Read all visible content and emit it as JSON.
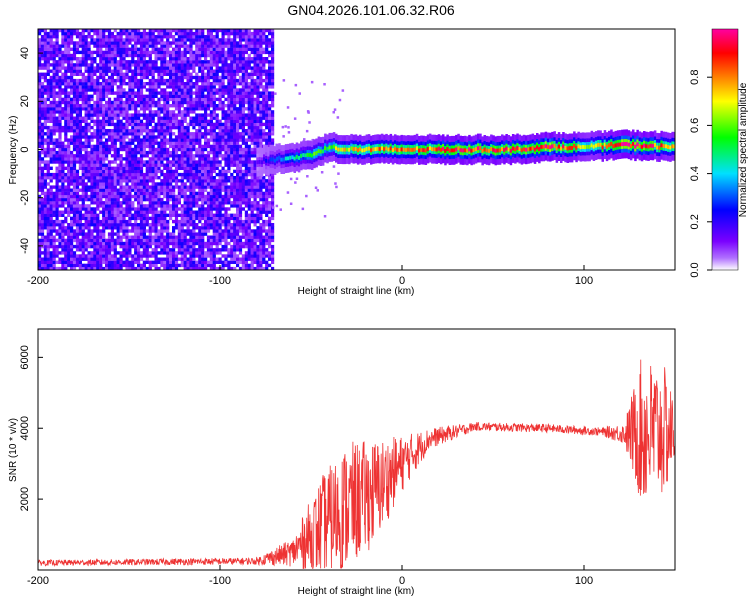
{
  "title": "GN04.2026.101.06.32.R06",
  "chart_data": [
    {
      "type": "heatmap",
      "name": "spectrogram",
      "xlabel": "Height of straight line (km)",
      "ylabel": "Frequency (Hz)",
      "xlim": [
        -200,
        150
      ],
      "ylim": [
        -50,
        50
      ],
      "xticks": [
        -200,
        -100,
        0,
        100
      ],
      "yticks": [
        -40,
        -20,
        0,
        20,
        40
      ],
      "colorbar": {
        "label": "Normalized spectral amplitude",
        "range": [
          0.0,
          1.0
        ],
        "ticks": [
          "0.0",
          "0.2",
          "0.4",
          "0.6",
          "0.8"
        ],
        "colormap": [
          "#ffffff",
          "#7a00ff",
          "#0000ff",
          "#00ffff",
          "#00ff00",
          "#ffff00",
          "#ff8000",
          "#ff0000",
          "#ff00ff"
        ]
      },
      "noise_region_x": [
        -200,
        -72
      ],
      "ridge": [
        {
          "x": -80,
          "f": -5,
          "a": 0.15
        },
        {
          "x": -70,
          "f": -4,
          "a": 0.3
        },
        {
          "x": -60,
          "f": -3.5,
          "a": 0.45
        },
        {
          "x": -50,
          "f": -2,
          "a": 0.55
        },
        {
          "x": -40,
          "f": 1,
          "a": 0.6
        },
        {
          "x": -30,
          "f": 0,
          "a": 0.7
        },
        {
          "x": -20,
          "f": 0,
          "a": 0.75
        },
        {
          "x": 0,
          "f": 0,
          "a": 0.8
        },
        {
          "x": 20,
          "f": 0,
          "a": 0.85
        },
        {
          "x": 40,
          "f": 0,
          "a": 0.9
        },
        {
          "x": 60,
          "f": 0,
          "a": 0.85
        },
        {
          "x": 80,
          "f": 1,
          "a": 0.95
        },
        {
          "x": 100,
          "f": 1,
          "a": 0.7
        },
        {
          "x": 120,
          "f": 2,
          "a": 0.95
        },
        {
          "x": 150,
          "f": 1,
          "a": 0.8
        }
      ]
    },
    {
      "type": "line",
      "name": "snr",
      "xlabel": "Height of straight line (km)",
      "ylabel": "SNR (10 * v/v)",
      "xlim": [
        -200,
        150
      ],
      "ylim": [
        0,
        6800
      ],
      "xticks": [
        -200,
        -100,
        0,
        100
      ],
      "yticks": [
        2000,
        4000,
        6000
      ],
      "color": "#ee3333",
      "envelope": [
        {
          "x": -200,
          "mean": 200,
          "amp": 80
        },
        {
          "x": -80,
          "mean": 250,
          "amp": 100
        },
        {
          "x": -60,
          "mean": 500,
          "amp": 400
        },
        {
          "x": -45,
          "mean": 1200,
          "amp": 1400
        },
        {
          "x": -30,
          "mean": 1800,
          "amp": 1800
        },
        {
          "x": -15,
          "mean": 2200,
          "amp": 1500
        },
        {
          "x": 0,
          "mean": 3000,
          "amp": 800
        },
        {
          "x": 15,
          "mean": 3700,
          "amp": 300
        },
        {
          "x": 40,
          "mean": 4050,
          "amp": 120
        },
        {
          "x": 80,
          "mean": 4000,
          "amp": 120
        },
        {
          "x": 110,
          "mean": 3900,
          "amp": 120
        },
        {
          "x": 122,
          "mean": 3850,
          "amp": 300
        },
        {
          "x": 132,
          "mean": 3900,
          "amp": 2200
        },
        {
          "x": 145,
          "mean": 3900,
          "amp": 1800
        },
        {
          "x": 150,
          "mean": 3900,
          "amp": 800
        }
      ]
    }
  ]
}
